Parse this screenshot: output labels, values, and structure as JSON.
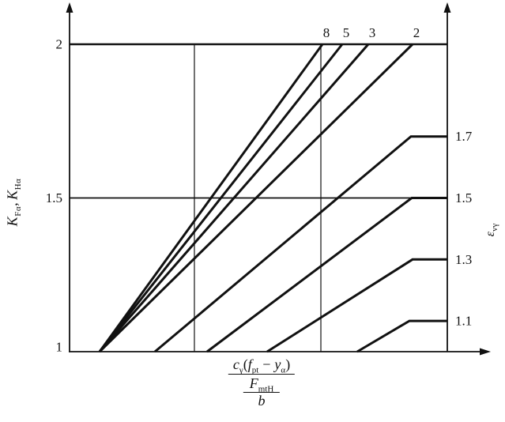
{
  "figure": {
    "background": "#ffffff",
    "ink": "#111111"
  },
  "y_axis": {
    "title": {
      "k1": "K",
      "k1_sub": "Fα",
      "sep": ",",
      "k2": "K",
      "k2_sub": "Hα"
    },
    "tick_labels": [
      "2",
      "1.5",
      "1"
    ]
  },
  "right_axis": {
    "title": {
      "base": "ε",
      "sub": "vγ"
    },
    "value_labels": [
      "1.7",
      "1.5",
      "1.3",
      "1.1"
    ]
  },
  "x_axis": {
    "label": {
      "num_c": "c",
      "num_c_sub": "γ",
      "num_open": "(",
      "num_f": "f",
      "num_f_sub": "pt",
      "num_minus": "−",
      "num_y": "y",
      "num_y_sub": "α",
      "num_close": ")",
      "mid_F": "F",
      "mid_F_sub": "mtH",
      "den_b": "b"
    }
  },
  "curve_labels_top": [
    "8",
    "5",
    "3",
    "2"
  ],
  "chart_data": {
    "type": "line",
    "title": "",
    "ylabel": "K_Fα , K_Hα",
    "right_label": "ε_vγ",
    "xlabel": "c_γ(f_pt − y_α) / (F_mtH / b)",
    "x_axis_numeric_labels": "none (unlabeled normalized axis, 0 to 1 across plot)",
    "ylim": [
      1,
      2
    ],
    "y_ticks": [
      {
        "v": 2,
        "label": "2"
      },
      {
        "v": 1.5,
        "label": "1.5"
      },
      {
        "v": 1,
        "label": "1"
      }
    ],
    "horizontal_gridlines_K": [
      2,
      1.5
    ],
    "vertical_gridlines_x": [
      0.3305,
      0.6653
    ],
    "grid": "partial reference lines only",
    "legend_position": "labels on curves (top edge for ε≥2, right edge for ε<2)",
    "series": [
      {
        "name": "ε_vγ = 8",
        "label": "8",
        "cap": 2,
        "points": [
          [
            0.0795,
            1
          ],
          [
            0.6695,
            2
          ]
        ]
      },
      {
        "name": "ε_vγ = 5",
        "label": "5",
        "cap": 2,
        "points": [
          [
            0.0795,
            1
          ],
          [
            0.7218,
            2
          ]
        ]
      },
      {
        "name": "ε_vγ = 3",
        "label": "3",
        "cap": 2,
        "points": [
          [
            0.0795,
            1
          ],
          [
            0.7908,
            2
          ]
        ]
      },
      {
        "name": "ε_vγ = 2",
        "label": "2",
        "cap": 2,
        "points": [
          [
            0.0795,
            1
          ],
          [
            0.9079,
            2
          ]
        ]
      },
      {
        "name": "ε_vγ = 1.7",
        "label": "1.7",
        "cap": 1.7,
        "points": [
          [
            0.2259,
            1
          ],
          [
            0.9038,
            1.7
          ],
          [
            1,
            1.7
          ]
        ]
      },
      {
        "name": "ε_vγ = 1.5",
        "label": "1.5",
        "cap": 1.5,
        "points": [
          [
            0.364,
            1
          ],
          [
            0.9059,
            1.5
          ],
          [
            1,
            1.5
          ]
        ]
      },
      {
        "name": "ε_vγ = 1.3",
        "label": "1.3",
        "cap": 1.3,
        "points": [
          [
            0.523,
            1
          ],
          [
            0.9079,
            1.3
          ],
          [
            1,
            1.3
          ]
        ]
      },
      {
        "name": "ε_vγ = 1.1",
        "label": "1.1",
        "cap": 1.1,
        "points": [
          [
            0.7615,
            1
          ],
          [
            0.8996,
            1.1
          ],
          [
            1,
            1.1
          ]
        ]
      }
    ]
  }
}
